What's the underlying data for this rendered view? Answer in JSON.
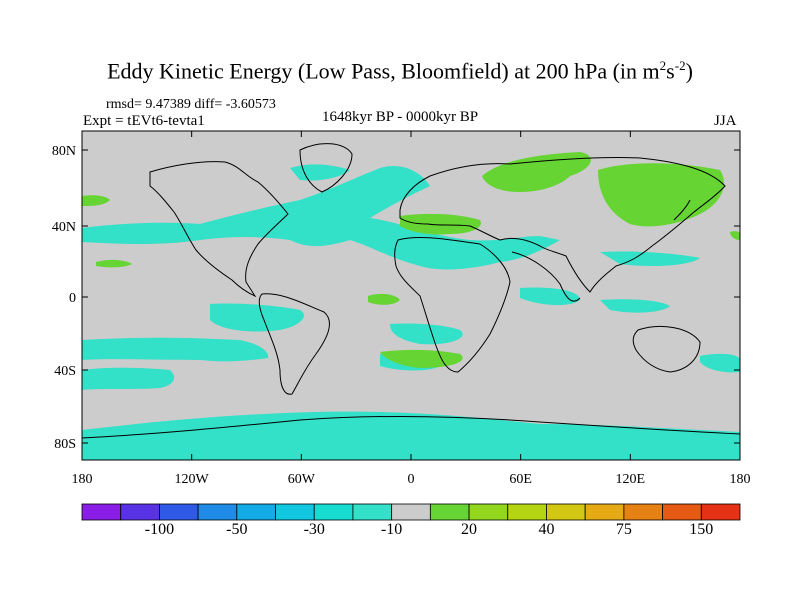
{
  "title": {
    "main": "Eddy Kinetic Energy (Low Pass, Bloomfield) at 200 hPa (in m",
    "exp1": "2",
    "mid": "s",
    "exp2": "-2",
    "close": ")"
  },
  "stats": "rmsd= 9.47389 diff= -3.60573",
  "experiment": "Expt = tEVt6-tevta1",
  "period": "1648kyr BP - 0000kyr BP",
  "season": "JJA",
  "map": {
    "lat_ticks": [
      "80N",
      "40N",
      "0",
      "40S",
      "80S"
    ],
    "lon_ticks": [
      "180",
      "120W",
      "60W",
      "0",
      "60E",
      "120E",
      "180"
    ],
    "background_color": "#cccccc",
    "neg_color": "#33e0c8",
    "pos_color": "#66d433"
  },
  "colorbar": {
    "colors": [
      "#8a1ee6",
      "#5a32e6",
      "#2e5ae6",
      "#1e8ce6",
      "#14aae6",
      "#12c8e0",
      "#16dcd2",
      "#33e0c8",
      "#cccccc",
      "#66d433",
      "#92d61e",
      "#b4d414",
      "#d2c814",
      "#e6aa14",
      "#e68214",
      "#e65a14",
      "#e63214"
    ],
    "labels": [
      "-100",
      "-50",
      "-30",
      "-10",
      "20",
      "40",
      "75",
      "150"
    ]
  }
}
